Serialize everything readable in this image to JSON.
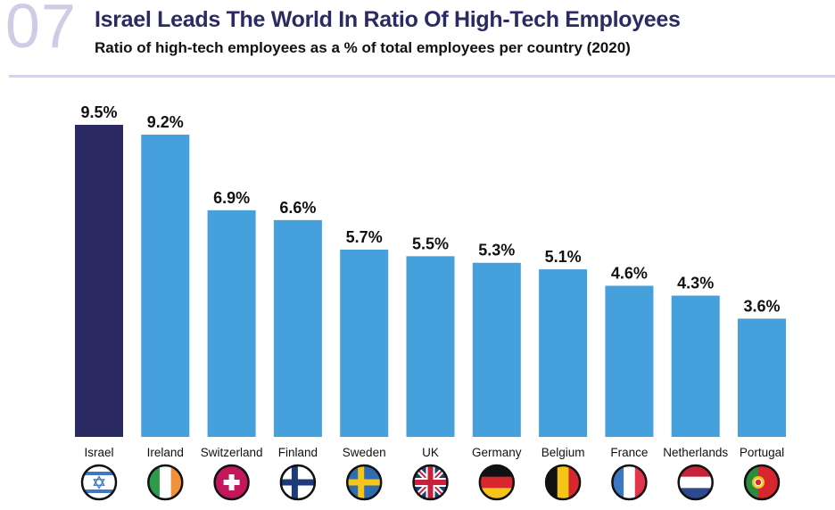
{
  "header": {
    "chapter": "07",
    "title": "Israel Leads The World In Ratio Of High-Tech Employees",
    "subtitle": "Ratio of high-tech employees as a % of total employees per country (2020)"
  },
  "colors": {
    "highlight": "#2b2a63",
    "bar": "#46a0dc",
    "rule": "#d4d3e8"
  },
  "chart_data": {
    "type": "bar",
    "title": "Israel Leads The World In Ratio Of High-Tech Employees",
    "subtitle": "Ratio of high-tech employees as a % of total employees per country (2020)",
    "categories": [
      "Israel",
      "Ireland",
      "Switzerland",
      "Finland",
      "Sweden",
      "UK",
      "Germany",
      "Belgium",
      "France",
      "Netherlands",
      "Portugal"
    ],
    "values": [
      9.5,
      9.2,
      6.9,
      6.6,
      5.7,
      5.5,
      5.3,
      5.1,
      4.6,
      4.3,
      3.6
    ],
    "labels": [
      "9.5%",
      "9.2%",
      "6.9%",
      "6.6%",
      "5.7%",
      "5.5%",
      "5.3%",
      "5.1%",
      "4.6%",
      "4.3%",
      "3.6%"
    ],
    "highlight": "Israel",
    "xlabel": "",
    "ylabel": "",
    "ylim": [
      0,
      9.5
    ],
    "grid": false,
    "flags": [
      "israel-flag-icon",
      "ireland-flag-icon",
      "switzerland-flag-icon",
      "finland-flag-icon",
      "sweden-flag-icon",
      "uk-flag-icon",
      "germany-flag-icon",
      "belgium-flag-icon",
      "france-flag-icon",
      "netherlands-flag-icon",
      "portugal-flag-icon"
    ]
  }
}
